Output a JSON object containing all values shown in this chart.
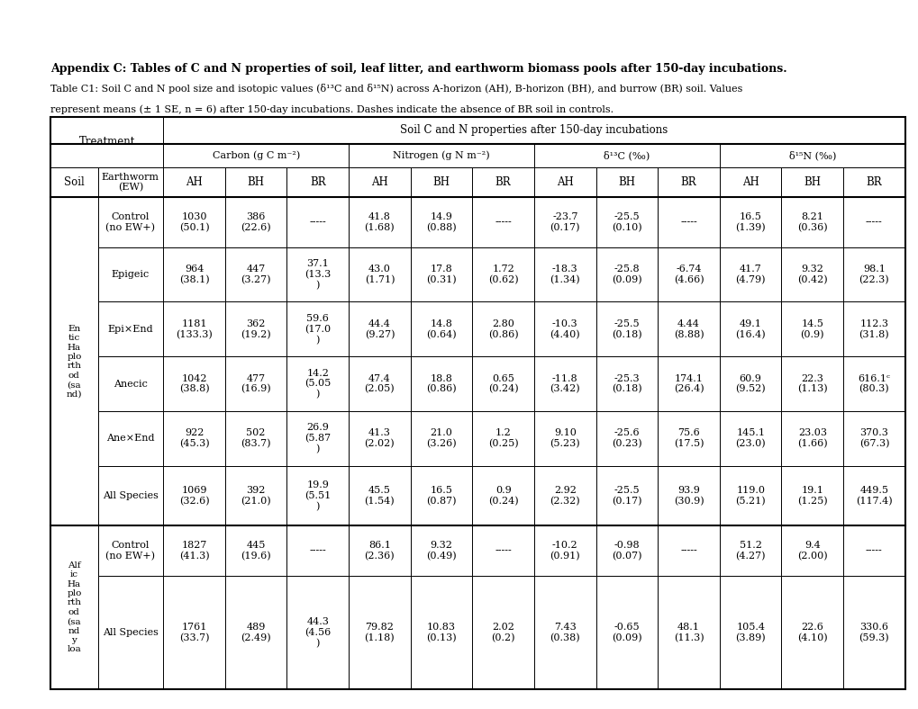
{
  "title": "Appendix C: Tables of C and N properties of soil, leaf litter, and earthworm biomass pools after 150-day incubations.",
  "subtitle_line1": "Table C1: Soil C and N pool size and isotopic values (δ¹³C and δ¹⁵N) across A-horizon (AH), B-horizon (BH), and burrow (BR) soil. Values",
  "subtitle_line2": "represent means (± 1 SE, n = 6) after 150-day incubations. Dashes indicate the absence of BR soil in controls.",
  "col_header_top": "Soil C and N properties after 150-day incubations",
  "col_groups": [
    {
      "label": "Carbon (g C m⁻²)"
    },
    {
      "label": "Nitrogen (g N m⁻²)"
    },
    {
      "label": "δ¹³C (‰)"
    },
    {
      "label": "δ¹⁵N (‰)"
    }
  ],
  "sub_cols": [
    "AH",
    "BH",
    "BR",
    "AH",
    "BH",
    "BR",
    "AH",
    "BH",
    "BR",
    "AH",
    "BH",
    "BR"
  ],
  "soil_labels": [
    "En\ntic\nHa\nplo\nrth\nod\n(sa\nnd)",
    "Alf\nic\nHa\nplo\nrth\nod\n(sa\nnd\ny\nloa"
  ],
  "rows": [
    {
      "soil_idx": 0,
      "earthworm": "Control\n(no EW+)",
      "data": [
        "1030\n(50.1)",
        "386\n(22.6)",
        "-----",
        "41.8\n(1.68)",
        "14.9\n(0.88)",
        "-----",
        "-23.7\n(0.17)",
        "-25.5\n(0.10)",
        "-----",
        "16.5\n(1.39)",
        "8.21\n(0.36)",
        "-----"
      ]
    },
    {
      "soil_idx": 0,
      "earthworm": "Epigeic",
      "data": [
        "964\n(38.1)",
        "447\n(3.27)",
        "37.1\n(13.3\n)",
        "43.0\n(1.71)",
        "17.8\n(0.31)",
        "1.72\n(0.62)",
        "-18.3\n(1.34)",
        "-25.8\n(0.09)",
        "-6.74\n(4.66)",
        "41.7\n(4.79)",
        "9.32\n(0.42)",
        "98.1\n(22.3)"
      ]
    },
    {
      "soil_idx": 0,
      "earthworm": "Epi×End",
      "data": [
        "1181\n(133.3)",
        "362\n(19.2)",
        "59.6\n(17.0\n)",
        "44.4\n(9.27)",
        "14.8\n(0.64)",
        "2.80\n(0.86)",
        "-10.3\n(4.40)",
        "-25.5\n(0.18)",
        "4.44\n(8.88)",
        "49.1\n(16.4)",
        "14.5\n(0.9)",
        "112.3\n(31.8)"
      ]
    },
    {
      "soil_idx": 0,
      "earthworm": "Anecic",
      "data": [
        "1042\n(38.8)",
        "477\n(16.9)",
        "14.2\n(5.05\n)",
        "47.4\n(2.05)",
        "18.8\n(0.86)",
        "0.65\n(0.24)",
        "-11.8\n(3.42)",
        "-25.3\n(0.18)",
        "174.1\n(26.4)",
        "60.9\n(9.52)",
        "22.3\n(1.13)",
        "616.1ᶜ\n(80.3)"
      ]
    },
    {
      "soil_idx": 0,
      "earthworm": "Ane×End",
      "data": [
        "922\n(45.3)",
        "502\n(83.7)",
        "26.9\n(5.87\n)",
        "41.3\n(2.02)",
        "21.0\n(3.26)",
        "1.2\n(0.25)",
        "9.10\n(5.23)",
        "-25.6\n(0.23)",
        "75.6\n(17.5)",
        "145.1\n(23.0)",
        "23.03\n(1.66)",
        "370.3\n(67.3)"
      ]
    },
    {
      "soil_idx": 0,
      "earthworm": "All Species",
      "data": [
        "1069\n(32.6)",
        "392\n(21.0)",
        "19.9\n(5.51\n)",
        "45.5\n(1.54)",
        "16.5\n(0.87)",
        "0.9\n(0.24)",
        "2.92\n(2.32)",
        "-25.5\n(0.17)",
        "93.9\n(30.9)",
        "119.0\n(5.21)",
        "19.1\n(1.25)",
        "449.5\n(117.4)"
      ]
    },
    {
      "soil_idx": 1,
      "earthworm": "Control\n(no EW+)",
      "data": [
        "1827\n(41.3)",
        "445\n(19.6)",
        "-----",
        "86.1\n(2.36)",
        "9.32\n(0.49)",
        "-----",
        "-10.2\n(0.91)",
        "-0.98\n(0.07)",
        "-----",
        "51.2\n(4.27)",
        "9.4\n(2.00)",
        "-----"
      ]
    },
    {
      "soil_idx": 1,
      "earthworm": "All Species",
      "data": [
        "1761\n(33.7)",
        "489\n(2.49)",
        "44.3\n(4.56\n)",
        "79.82\n(1.18)",
        "10.83\n(0.13)",
        "2.02\n(0.2)",
        "7.43\n(0.38)",
        "-0.65\n(0.09)",
        "48.1\n(11.3)",
        "105.4\n(3.89)",
        "22.6\n(4.10)",
        "330.6\n(59.3)"
      ]
    }
  ],
  "figsize": [
    10.2,
    7.88
  ],
  "dpi": 100
}
